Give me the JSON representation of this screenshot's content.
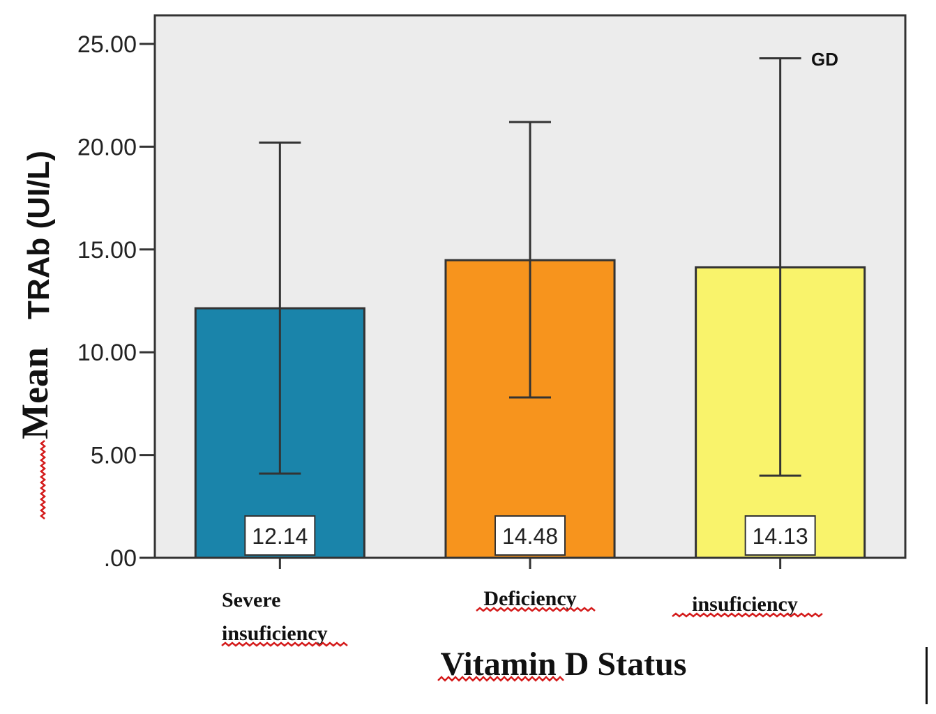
{
  "chart_data": {
    "type": "bar",
    "title": "",
    "xlabel": "Vitamin D Status",
    "ylabel_prefix": "Mean",
    "ylabel_main": "TRAb (UI/L)",
    "legend": "GD",
    "categories": [
      {
        "line1": "Severe",
        "line2": "insuficiency"
      },
      {
        "line1": "Deficiency",
        "line2": ""
      },
      {
        "line1": "insuficiency",
        "line2": ""
      }
    ],
    "values": [
      12.14,
      14.48,
      14.13
    ],
    "value_labels": [
      "12.14",
      "14.48",
      "14.13"
    ],
    "error_bars": [
      {
        "low": 4.1,
        "high": 20.2
      },
      {
        "low": 7.8,
        "high": 21.2
      },
      {
        "low": 4.0,
        "high": 24.3
      }
    ],
    "colors": [
      "#1a84aa",
      "#f7941d",
      "#f9f36b"
    ],
    "plot_background": "#ececec",
    "ylim": [
      0,
      25
    ],
    "yticks": [
      0,
      5,
      10,
      15,
      20,
      25
    ],
    "ytick_labels": [
      ".00",
      "5.00",
      "10.00",
      "15.00",
      "20.00",
      "25.00"
    ],
    "grid": false,
    "legend_position": "top-right"
  }
}
